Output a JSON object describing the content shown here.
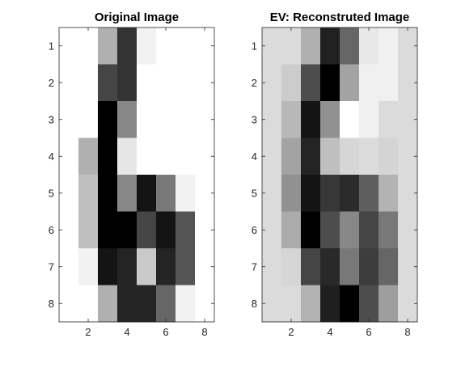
{
  "chart_data": [
    {
      "type": "heatmap",
      "title": "Original Image",
      "colormap": "gray",
      "grid": false,
      "xlim": [
        0.5,
        8.5
      ],
      "ylim": [
        8.5,
        0.5
      ],
      "xticks": [
        2,
        4,
        6,
        8
      ],
      "yticks": [
        1,
        2,
        3,
        4,
        5,
        6,
        7,
        8
      ],
      "xlabel": "",
      "ylabel": "",
      "values": [
        [
          1.0,
          1.0,
          0.69,
          0.2,
          0.95,
          1.0,
          1.0,
          1.0
        ],
        [
          1.0,
          1.0,
          0.27,
          0.2,
          1.0,
          1.0,
          1.0,
          1.0
        ],
        [
          1.0,
          1.0,
          0.0,
          0.53,
          1.0,
          1.0,
          1.0,
          1.0
        ],
        [
          1.0,
          0.69,
          0.0,
          0.9,
          1.0,
          1.0,
          1.0,
          1.0
        ],
        [
          1.0,
          0.75,
          0.0,
          0.53,
          0.08,
          0.47,
          0.95,
          1.0
        ],
        [
          1.0,
          0.75,
          0.0,
          0.0,
          0.27,
          0.08,
          0.33,
          1.0
        ],
        [
          1.0,
          0.95,
          0.08,
          0.14,
          0.79,
          0.14,
          0.33,
          1.0
        ],
        [
          1.0,
          1.0,
          0.69,
          0.14,
          0.14,
          0.4,
          0.95,
          1.0
        ]
      ]
    },
    {
      "type": "heatmap",
      "title": "EV: Reconstruted Image",
      "colormap": "gray",
      "grid": false,
      "xlim": [
        0.5,
        8.5
      ],
      "ylim": [
        8.5,
        0.5
      ],
      "xticks": [
        2,
        4,
        6,
        8
      ],
      "yticks": [
        1,
        2,
        3,
        4,
        5,
        6,
        7,
        8
      ],
      "xlabel": "",
      "ylabel": "",
      "values": [
        [
          0.86,
          0.86,
          0.69,
          0.13,
          0.4,
          0.91,
          0.94,
          0.86
        ],
        [
          0.86,
          0.8,
          0.3,
          0.0,
          0.64,
          0.94,
          0.94,
          0.86
        ],
        [
          0.86,
          0.72,
          0.08,
          0.57,
          1.0,
          0.94,
          0.86,
          0.86
        ],
        [
          0.86,
          0.64,
          0.14,
          0.75,
          0.84,
          0.86,
          0.83,
          0.86
        ],
        [
          0.86,
          0.57,
          0.08,
          0.22,
          0.17,
          0.37,
          0.7,
          0.86
        ],
        [
          0.86,
          0.67,
          0.0,
          0.3,
          0.53,
          0.27,
          0.47,
          0.86
        ],
        [
          0.86,
          0.84,
          0.27,
          0.16,
          0.47,
          0.24,
          0.4,
          0.86
        ],
        [
          0.86,
          0.86,
          0.7,
          0.12,
          0.0,
          0.3,
          0.62,
          0.86
        ]
      ]
    }
  ]
}
